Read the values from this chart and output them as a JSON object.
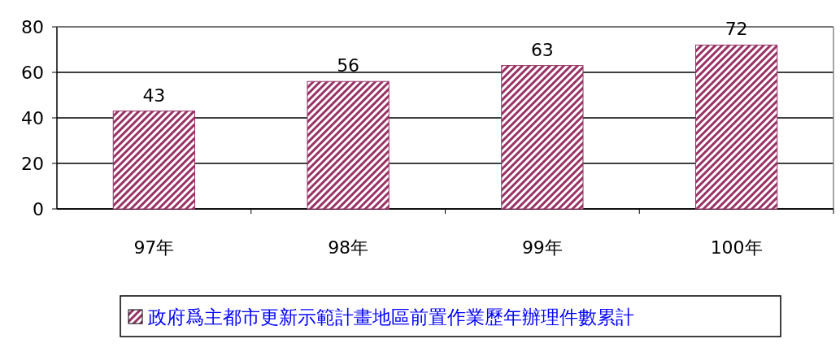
{
  "chart_data": {
    "type": "bar",
    "categories": [
      "97年",
      "98年",
      "99年",
      "100年"
    ],
    "series": [
      {
        "name": "政府爲主都市更新示範計畫地區前置作業歷年辦理件數累計",
        "color": "#993366",
        "values": [
          43,
          56,
          63,
          72
        ]
      }
    ],
    "ylim": [
      0,
      80
    ],
    "yticks": [
      0,
      20,
      40,
      60,
      80
    ],
    "grid": "y",
    "data_labels": true,
    "legend": "bottom"
  }
}
